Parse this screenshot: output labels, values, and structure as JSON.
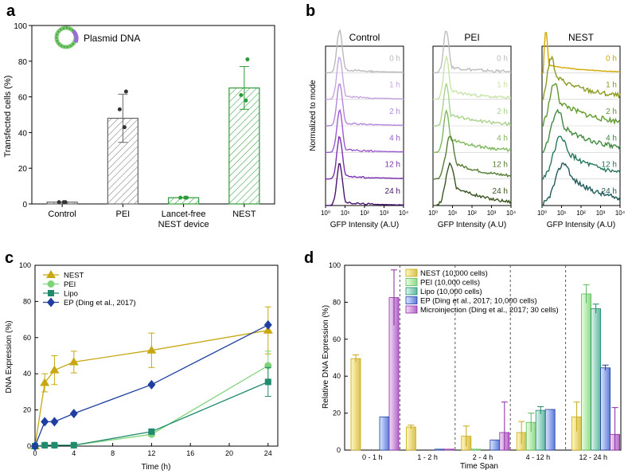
{
  "panel_letters": {
    "a": "a",
    "b": "b",
    "c": "c",
    "d": "d"
  },
  "colors": {
    "nest_a": "#2e9a3a",
    "nest_c": "#c8a812",
    "pei_c": "#7fd37a",
    "lipo_c": "#1f8a6e",
    "ep_c": "#1f3fa0",
    "micro_c": "#8a2aa0"
  },
  "chart_data": [
    {
      "id": "a",
      "type": "bar",
      "title": "",
      "ylabel": "Transfected cells (%)",
      "ylim": [
        0,
        100
      ],
      "yticks": [
        0,
        20,
        40,
        60,
        80,
        100
      ],
      "categories": [
        "Control",
        "PEI",
        "Lancet-free\nNEST device",
        "NEST"
      ],
      "values": [
        1,
        48,
        3.5,
        65
      ],
      "errors": [
        0.5,
        13.5,
        0.5,
        12
      ],
      "points": [
        [
          1,
          1,
          1
        ],
        [
          63,
          53,
          43
        ],
        [
          3.5,
          3.5,
          3.5
        ],
        [
          81,
          61,
          58
        ]
      ],
      "legend": "Plasmid DNA"
    },
    {
      "id": "b",
      "type": "histogram",
      "panels": [
        "Control",
        "PEI",
        "NEST"
      ],
      "times": [
        "0 h",
        "1 h",
        "2 h",
        "4 h",
        "12 h",
        "24 h"
      ],
      "ylabel": "Normalized to mode",
      "xlabel": "GFP Intensity (A.U)",
      "xticks": [
        "10⁰",
        "10¹",
        "10²",
        "10³",
        "10⁴"
      ],
      "colors": [
        [
          "#b9b9b9",
          "#c7a6e3",
          "#b486dc",
          "#9a5bd0",
          "#7b2fb3",
          "#4b1470"
        ],
        [
          "#bdbdbd",
          "#c9e3a8",
          "#a8d38a",
          "#7fb85c",
          "#557d35",
          "#3b5520"
        ],
        [
          "#d4a800",
          "#8c9a1c",
          "#5f9a2d",
          "#3f8a3f",
          "#257a5a",
          "#1f5a5a"
        ]
      ]
    },
    {
      "id": "c",
      "type": "line",
      "xlabel": "Time (h)",
      "ylabel": "DNA Expression (%)",
      "xlim": [
        0,
        25
      ],
      "ylim": [
        0,
        100
      ],
      "xticks": [
        0,
        4,
        8,
        12,
        16,
        20,
        24
      ],
      "yticks": [
        0,
        20,
        40,
        60,
        80,
        100
      ],
      "series": [
        {
          "name": "NEST",
          "x": [
            0,
            1,
            2,
            4,
            12,
            24
          ],
          "y": [
            0,
            35,
            42,
            46.5,
            53,
            64
          ],
          "err": [
            0,
            5,
            8,
            6,
            9.5,
            13
          ],
          "marker": "triangle"
        },
        {
          "name": "PEI",
          "x": [
            0,
            1,
            2,
            4,
            12,
            24
          ],
          "y": [
            0,
            0.5,
            0.5,
            0.5,
            6.5,
            44.5
          ],
          "err": [
            0,
            0,
            0,
            0,
            1,
            8
          ],
          "marker": "circle"
        },
        {
          "name": "Lipo",
          "x": [
            0,
            1,
            2,
            4,
            12,
            24
          ],
          "y": [
            0,
            0.5,
            0.5,
            0.5,
            8,
            35.5
          ],
          "err": [
            0,
            0,
            0,
            0,
            1,
            8
          ],
          "marker": "square"
        },
        {
          "name": "EP (Ding et al., 2017)",
          "x": [
            0,
            1,
            2,
            4,
            12,
            24
          ],
          "y": [
            0,
            13.5,
            13.5,
            18,
            34,
            67
          ],
          "err": [
            0,
            0,
            0,
            0,
            0,
            0
          ],
          "marker": "diamond"
        }
      ]
    },
    {
      "id": "d",
      "type": "bar",
      "xlabel": "Time Span",
      "ylabel": "Relative DNA Expression (%)",
      "ylim": [
        0,
        100
      ],
      "yticks": [
        0,
        20,
        40,
        60,
        80,
        100
      ],
      "categories": [
        "0 - 1 h",
        "1 - 2 h",
        "2 - 4 h",
        "4 - 12 h",
        "12 - 24 h"
      ],
      "series": [
        {
          "name": "NEST (10,000 cells)",
          "values": [
            49.5,
            12.5,
            7.5,
            9.5,
            18
          ],
          "err": [
            2,
            1,
            5.5,
            6,
            8
          ]
        },
        {
          "name": "PEI (10,000 cells)",
          "values": [
            0,
            0,
            0.5,
            15,
            84.5
          ],
          "err": [
            0,
            0,
            0,
            5,
            5
          ]
        },
        {
          "name": "Lipo (10,000 cells)",
          "values": [
            0,
            0,
            0,
            21.5,
            76.5
          ],
          "err": [
            0,
            0,
            0,
            2,
            2.5
          ]
        },
        {
          "name": "EP (Ding et al., 2017; 10,000 cells)",
          "values": [
            18,
            0.5,
            5.5,
            22,
            44.5
          ],
          "err": [
            0,
            0,
            0,
            0,
            1.5
          ]
        },
        {
          "name": "Microinjection (Ding et al., 2017; 30 cells)",
          "values": [
            82.5,
            0.5,
            9.5,
            0,
            8.5
          ],
          "err": [
            15,
            0,
            16.5,
            0,
            14.5
          ]
        }
      ]
    }
  ]
}
